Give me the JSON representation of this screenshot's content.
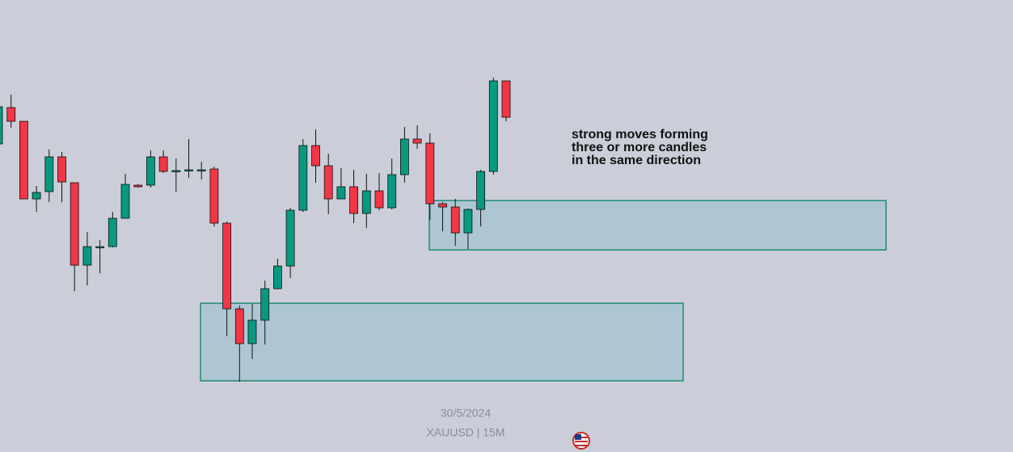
{
  "chart_data": {
    "type": "candlestick",
    "open": [
      381,
      426,
      409,
      313,
      322,
      365,
      333,
      231,
      254,
      254,
      289,
      330,
      330,
      365,
      348,
      349,
      349,
      350,
      283,
      177,
      134,
      163,
      202,
      230,
      299,
      379,
      354,
      313,
      328,
      295,
      323,
      302,
      343,
      387,
      382,
      307,
      303,
      271,
      300,
      347,
      459
    ],
    "close": [
      427,
      409,
      313,
      321,
      365,
      334,
      231,
      254,
      254,
      289,
      331,
      328,
      365,
      347,
      348,
      349,
      349,
      283,
      177,
      134,
      163,
      202,
      230,
      299,
      379,
      354,
      313,
      328,
      295,
      323,
      302,
      343,
      387,
      382,
      307,
      303,
      271,
      300,
      347,
      459,
      414
    ],
    "high": [
      439,
      442,
      409,
      329,
      374,
      371,
      333,
      272,
      262,
      297,
      344,
      331,
      373,
      373,
      363,
      387,
      359,
      353,
      285,
      181,
      183,
      212,
      239,
      302,
      387,
      399,
      369,
      351,
      349,
      344,
      345,
      363,
      402,
      404,
      394,
      309,
      313,
      301,
      349,
      463,
      459
    ],
    "low": [
      381,
      401,
      313,
      297,
      309,
      309,
      199,
      206,
      221,
      253,
      289,
      327,
      327,
      345,
      322,
      339,
      337,
      279,
      143,
      87,
      115,
      133,
      201,
      215,
      297,
      333,
      294,
      313,
      283,
      277,
      299,
      300,
      333,
      375,
      287,
      273,
      255,
      251,
      279,
      343,
      409
    ],
    "colors": {
      "up": "#089981",
      "down": "#f23645"
    },
    "ylim": [
      0,
      559
    ],
    "zones": [
      {
        "low": 250,
        "high": 311
      },
      {
        "low": 88,
        "high": 184
      }
    ],
    "annotation": [
      "strong moves forming",
      "three or more candles",
      "in the same direction"
    ],
    "date": "30/5/2024",
    "symbol": "XAUUSD | 15M"
  }
}
